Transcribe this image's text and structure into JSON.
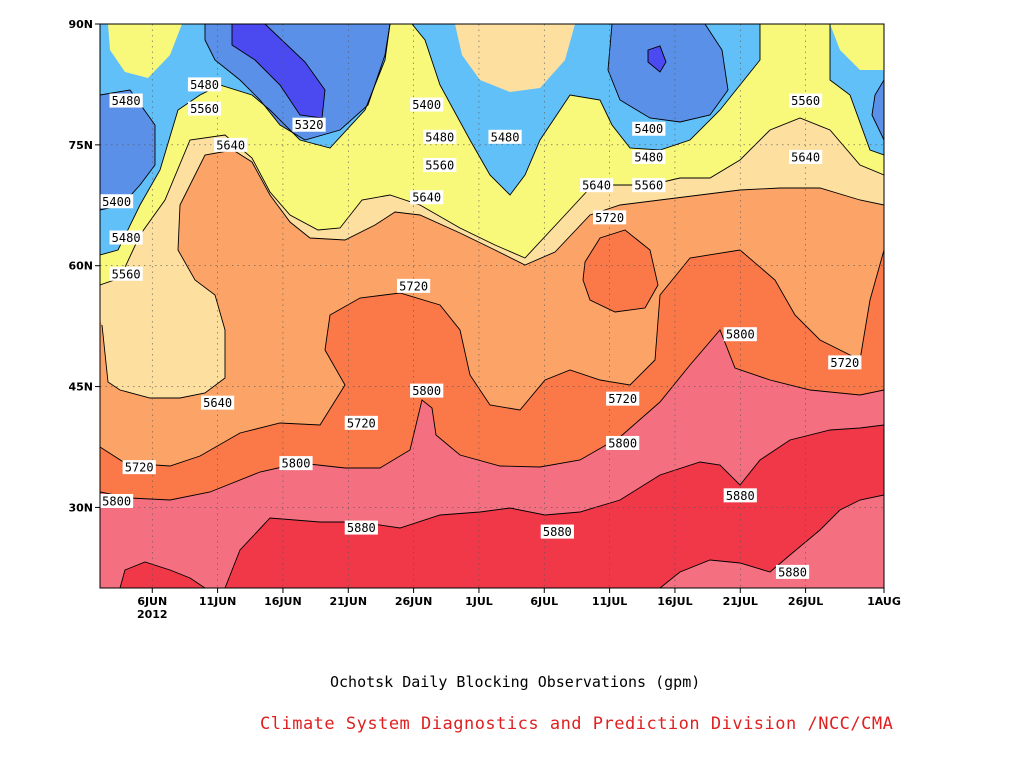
{
  "chart_data": {
    "type": "contour",
    "title": "Ochotsk Daily Blocking Observations (gpm)",
    "credit": "Climate System Diagnostics and Prediction Division /NCC/CMA",
    "xlim": [
      "2012-06-02",
      "2012-08-01"
    ],
    "ylim_deg_north": [
      20,
      90
    ],
    "x_ticks": [
      {
        "date": "2012-06-06",
        "label": "6JUN",
        "sublabel": "2012"
      },
      {
        "date": "2012-06-11",
        "label": "11JUN"
      },
      {
        "date": "2012-06-16",
        "label": "16JUN"
      },
      {
        "date": "2012-06-21",
        "label": "21JUN"
      },
      {
        "date": "2012-06-26",
        "label": "26JUN"
      },
      {
        "date": "2012-07-01",
        "label": "1JUL"
      },
      {
        "date": "2012-07-06",
        "label": "6JUL"
      },
      {
        "date": "2012-07-11",
        "label": "11JUL"
      },
      {
        "date": "2012-07-16",
        "label": "16JUL"
      },
      {
        "date": "2012-07-21",
        "label": "21JUL"
      },
      {
        "date": "2012-07-26",
        "label": "26JUL"
      },
      {
        "date": "2012-08-01",
        "label": "1AUG"
      }
    ],
    "y_ticks": [
      {
        "value": 30,
        "label": "30N"
      },
      {
        "value": 45,
        "label": "45N"
      },
      {
        "value": 60,
        "label": "60N"
      },
      {
        "value": 75,
        "label": "75N"
      },
      {
        "value": 90,
        "label": "90N"
      }
    ],
    "grid": true,
    "contour_levels": [
      5320,
      5400,
      5480,
      5560,
      5640,
      5720,
      5800,
      5880
    ],
    "fill_colors": {
      "below_5320": "#4a4af0",
      "5320_5400": "#5b90e8",
      "5400_5480": "#62c0f8",
      "5480_5560": "#f8f87a",
      "5560_5640": "#fde0a0",
      "5640_5720": "#fca468",
      "5720_5800": "#fb7848",
      "5800_5880": "#f47080",
      "above_5880": "#f03848"
    },
    "contour_labels": [
      {
        "date": "2012-06-04",
        "lat": 80.5,
        "text": "5480"
      },
      {
        "date": "2012-06-10",
        "lat": 82.5,
        "text": "5480"
      },
      {
        "date": "2012-06-10",
        "lat": 79.5,
        "text": "5560"
      },
      {
        "date": "2012-06-12",
        "lat": 75.0,
        "text": "5640"
      },
      {
        "date": "2012-06-18",
        "lat": 77.5,
        "text": "5320"
      },
      {
        "date": "2012-06-27",
        "lat": 80.0,
        "text": "5400"
      },
      {
        "date": "2012-06-28",
        "lat": 76.0,
        "text": "5480"
      },
      {
        "date": "2012-06-28",
        "lat": 72.5,
        "text": "5560"
      },
      {
        "date": "2012-06-27",
        "lat": 68.5,
        "text": "5640"
      },
      {
        "date": "2012-07-03",
        "lat": 76.0,
        "text": "5480"
      },
      {
        "date": "2012-06-02",
        "lat": 68.0,
        "text": "5400"
      },
      {
        "date": "2012-06-04",
        "lat": 63.5,
        "text": "5480"
      },
      {
        "date": "2012-06-04",
        "lat": 59.0,
        "text": "5560"
      },
      {
        "date": "2012-06-26",
        "lat": 57.5,
        "text": "5720"
      },
      {
        "date": "2012-07-11",
        "lat": 66.0,
        "text": "5720"
      },
      {
        "date": "2012-07-10",
        "lat": 70.0,
        "text": "5640"
      },
      {
        "date": "2012-07-14",
        "lat": 77.0,
        "text": "5400"
      },
      {
        "date": "2012-07-14",
        "lat": 73.5,
        "text": "5480"
      },
      {
        "date": "2012-07-14",
        "lat": 70.0,
        "text": "5560"
      },
      {
        "date": "2012-07-26",
        "lat": 80.5,
        "text": "5560"
      },
      {
        "date": "2012-07-26",
        "lat": 73.5,
        "text": "5640"
      },
      {
        "date": "2012-06-11",
        "lat": 43.0,
        "text": "5640"
      },
      {
        "date": "2012-06-05",
        "lat": 35.0,
        "text": "5720"
      },
      {
        "date": "2012-06-22",
        "lat": 40.5,
        "text": "5720"
      },
      {
        "date": "2012-06-17",
        "lat": 35.5,
        "text": "5800"
      },
      {
        "date": "2012-06-02",
        "lat": 30.8,
        "text": "5800"
      },
      {
        "date": "2012-06-27",
        "lat": 44.5,
        "text": "5800"
      },
      {
        "date": "2012-07-12",
        "lat": 43.5,
        "text": "5720"
      },
      {
        "date": "2012-07-12",
        "lat": 38.0,
        "text": "5800"
      },
      {
        "date": "2012-06-22",
        "lat": 27.5,
        "text": "5880"
      },
      {
        "date": "2012-07-07",
        "lat": 27.0,
        "text": "5880"
      },
      {
        "date": "2012-07-21",
        "lat": 51.5,
        "text": "5800"
      },
      {
        "date": "2012-07-29",
        "lat": 48.0,
        "text": "5720"
      },
      {
        "date": "2012-07-21",
        "lat": 31.5,
        "text": "5880"
      },
      {
        "date": "2012-07-25",
        "lat": 22.0,
        "text": "5880"
      }
    ]
  }
}
